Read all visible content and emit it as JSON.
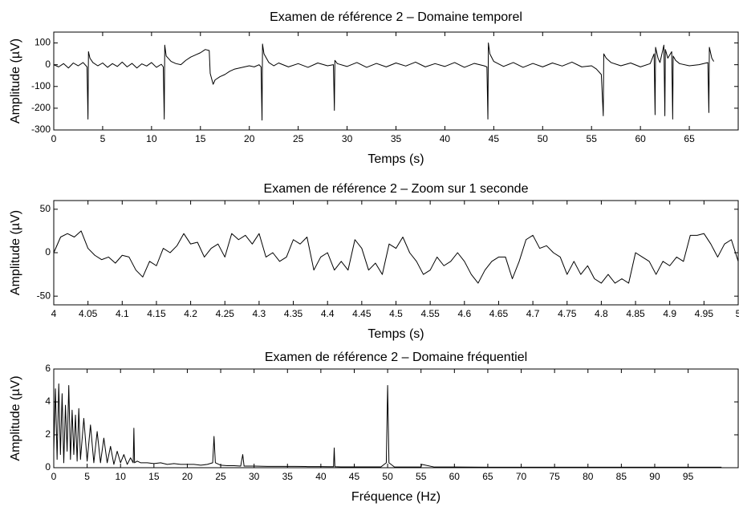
{
  "chart_data": [
    {
      "type": "line",
      "title": "Examen de référence 2 – Domaine temporel",
      "x_label": "Temps (s)",
      "y_label": "Amplitude (µV)",
      "color": "#000000",
      "x": [
        0,
        0.5,
        1,
        1.5,
        2,
        2.5,
        3,
        3.4,
        3.5,
        3.55,
        3.7,
        4,
        4.5,
        5,
        5.5,
        6,
        6.5,
        7,
        7.5,
        8,
        8.5,
        9,
        9.5,
        10,
        10.5,
        11,
        11.2,
        11.3,
        11.35,
        11.5,
        12,
        12.5,
        13,
        13.5,
        14,
        14.5,
        15,
        15.5,
        15.9,
        16,
        16.3,
        16.5,
        17,
        17.5,
        18,
        18.5,
        19,
        20,
        20.5,
        21,
        21.2,
        21.3,
        21.35,
        21.5,
        22,
        22.5,
        23,
        24,
        25,
        26,
        27,
        28,
        28.6,
        28.7,
        28.75,
        29,
        30,
        31,
        32,
        33,
        34,
        35,
        36,
        37,
        38,
        39,
        40,
        41,
        42,
        43,
        44,
        44.3,
        44.4,
        44.45,
        44.6,
        45,
        46,
        47,
        48,
        49,
        50,
        51,
        52,
        53,
        54,
        55,
        55.5,
        56,
        56.2,
        56.25,
        56.5,
        57,
        58,
        59,
        60,
        61,
        61.4,
        61.5,
        61.55,
        61.8,
        62,
        62.4,
        62.5,
        62.55,
        62.8,
        63.2,
        63.3,
        63.35,
        63.6,
        64,
        65,
        66,
        66.9,
        67,
        67.05,
        67.3,
        67.5
      ],
      "values": [
        0,
        -10,
        5,
        -15,
        8,
        -5,
        10,
        -10,
        -250,
        60,
        30,
        10,
        -5,
        8,
        -12,
        5,
        -8,
        12,
        -10,
        6,
        -15,
        4,
        -6,
        10,
        -12,
        2,
        -10,
        -250,
        90,
        40,
        15,
        5,
        0,
        20,
        35,
        45,
        55,
        70,
        65,
        -40,
        -90,
        -70,
        -55,
        -45,
        -30,
        -20,
        -15,
        -5,
        -10,
        0,
        -10,
        -255,
        95,
        50,
        10,
        -5,
        8,
        -10,
        5,
        -12,
        8,
        -5,
        0,
        -210,
        20,
        5,
        -8,
        10,
        -12,
        6,
        -10,
        8,
        -6,
        12,
        -10,
        5,
        -8,
        10,
        -12,
        6,
        -5,
        -10,
        -250,
        100,
        50,
        15,
        -8,
        10,
        -12,
        6,
        -10,
        8,
        -6,
        12,
        -10,
        -5,
        -20,
        -45,
        -235,
        50,
        30,
        10,
        -5,
        8,
        -10,
        5,
        50,
        -230,
        80,
        30,
        10,
        90,
        -235,
        70,
        30,
        60,
        -250,
        40,
        20,
        5,
        -5,
        0,
        10,
        -220,
        80,
        30,
        15
      ],
      "xlim": [
        0,
        70
      ],
      "ylim": [
        -300,
        150
      ],
      "xticks": [
        0,
        5,
        10,
        15,
        20,
        25,
        30,
        35,
        40,
        45,
        50,
        55,
        60,
        65
      ],
      "yticks": [
        -300,
        -200,
        -100,
        0,
        100
      ]
    },
    {
      "type": "line",
      "title": "Examen de référence 2 – Zoom sur 1 seconde",
      "x_label": "Temps (s)",
      "y_label": "Amplitude (µV)",
      "color": "#000000",
      "x": [
        4,
        4.01,
        4.02,
        4.03,
        4.04,
        4.05,
        4.06,
        4.07,
        4.08,
        4.09,
        4.1,
        4.11,
        4.12,
        4.13,
        4.14,
        4.15,
        4.16,
        4.17,
        4.18,
        4.19,
        4.2,
        4.21,
        4.22,
        4.23,
        4.24,
        4.25,
        4.26,
        4.27,
        4.28,
        4.29,
        4.3,
        4.31,
        4.32,
        4.33,
        4.34,
        4.35,
        4.36,
        4.37,
        4.38,
        4.39,
        4.4,
        4.41,
        4.42,
        4.43,
        4.44,
        4.45,
        4.46,
        4.47,
        4.48,
        4.49,
        4.5,
        4.51,
        4.52,
        4.53,
        4.54,
        4.55,
        4.56,
        4.57,
        4.58,
        4.59,
        4.6,
        4.61,
        4.62,
        4.63,
        4.64,
        4.65,
        4.66,
        4.67,
        4.68,
        4.69,
        4.7,
        4.71,
        4.72,
        4.73,
        4.74,
        4.75,
        4.76,
        4.77,
        4.78,
        4.79,
        4.8,
        4.81,
        4.82,
        4.83,
        4.84,
        4.85,
        4.86,
        4.87,
        4.88,
        4.89,
        4.9,
        4.91,
        4.92,
        4.93,
        4.94,
        4.95,
        4.96,
        4.97,
        4.98,
        4.99,
        5
      ],
      "values": [
        0,
        18,
        22,
        18,
        25,
        5,
        -3,
        -8,
        -5,
        -12,
        -3,
        -5,
        -20,
        -28,
        -10,
        -15,
        5,
        0,
        8,
        22,
        10,
        12,
        -5,
        5,
        10,
        -5,
        22,
        15,
        20,
        10,
        22,
        -5,
        0,
        -10,
        -5,
        15,
        10,
        18,
        -20,
        -5,
        0,
        -20,
        -10,
        -20,
        15,
        5,
        -20,
        -12,
        -25,
        10,
        5,
        18,
        0,
        -10,
        -25,
        -20,
        -5,
        -15,
        -10,
        0,
        -10,
        -25,
        -35,
        -20,
        -10,
        -5,
        -5,
        -30,
        -10,
        15,
        20,
        5,
        8,
        0,
        -5,
        -25,
        -10,
        -25,
        -15,
        -30,
        -35,
        -25,
        -35,
        -30,
        -35,
        0,
        -5,
        -10,
        -25,
        -10,
        -15,
        -5,
        -10,
        20,
        20,
        22,
        10,
        -5,
        10,
        15,
        -10
      ],
      "xlim": [
        4,
        5
      ],
      "ylim": [
        -60,
        60
      ],
      "xticks": [
        4,
        4.05,
        4.1,
        4.15,
        4.2,
        4.25,
        4.3,
        4.35,
        4.4,
        4.45,
        4.5,
        4.55,
        4.6,
        4.65,
        4.7,
        4.75,
        4.8,
        4.85,
        4.9,
        4.95,
        5
      ],
      "yticks": [
        -50,
        0,
        50
      ]
    },
    {
      "type": "line",
      "title": "Examen de référence 2 – Domaine fréquentiel",
      "x_label": "Fréquence (Hz)",
      "y_label": "Amplitude (µV)",
      "color": "#000000",
      "x": [
        0,
        0.25,
        0.5,
        0.75,
        1,
        1.25,
        1.5,
        1.75,
        2,
        2.25,
        2.5,
        2.75,
        3,
        3.25,
        3.5,
        3.75,
        4,
        4.5,
        5,
        5.5,
        6,
        6.5,
        7,
        7.5,
        8,
        8.5,
        9,
        9.5,
        10,
        10.5,
        11,
        11.5,
        11.9,
        12,
        12.1,
        12.5,
        13,
        14,
        15,
        16,
        17,
        18,
        19,
        20,
        21,
        22,
        23,
        23.8,
        24,
        24.2,
        25,
        26,
        27,
        28,
        28.3,
        28.5,
        29,
        30,
        32,
        34,
        36,
        38,
        40,
        41,
        41.9,
        42,
        42.1,
        43,
        45,
        47,
        49,
        49.8,
        50,
        50.2,
        51,
        53,
        55,
        55.1,
        57,
        60,
        65,
        70,
        75,
        80,
        85,
        90,
        95,
        100
      ],
      "values": [
        1,
        4.8,
        0.5,
        5.1,
        0.8,
        4.5,
        0.3,
        3.8,
        1,
        5,
        0.5,
        3.5,
        0.8,
        3.2,
        0.4,
        3.6,
        0.5,
        3,
        0.4,
        2.6,
        0.3,
        2.2,
        0.3,
        1.8,
        0.3,
        1.3,
        0.2,
        1,
        0.3,
        0.8,
        0.2,
        0.6,
        0.3,
        2.4,
        0.3,
        0.4,
        0.3,
        0.3,
        0.25,
        0.3,
        0.2,
        0.25,
        0.2,
        0.2,
        0.2,
        0.15,
        0.2,
        0.3,
        1.9,
        0.3,
        0.15,
        0.12,
        0.12,
        0.1,
        0.8,
        0.1,
        0.1,
        0.1,
        0.08,
        0.08,
        0.08,
        0.07,
        0.07,
        0.06,
        0.06,
        1.2,
        0.06,
        0.05,
        0.05,
        0.05,
        0.05,
        0.3,
        5,
        0.3,
        0.05,
        0.04,
        0.04,
        0.2,
        0.04,
        0.04,
        0.03,
        0.03,
        0.03,
        0.03,
        0.03,
        0.03,
        0.03,
        0.03
      ],
      "xlim": [
        0,
        102.5
      ],
      "ylim": [
        0,
        6
      ],
      "xticks": [
        0,
        5,
        10,
        15,
        20,
        25,
        30,
        35,
        40,
        45,
        50,
        55,
        60,
        65,
        70,
        75,
        80,
        85,
        90,
        95
      ],
      "yticks": [
        0,
        2,
        4,
        6
      ]
    }
  ]
}
